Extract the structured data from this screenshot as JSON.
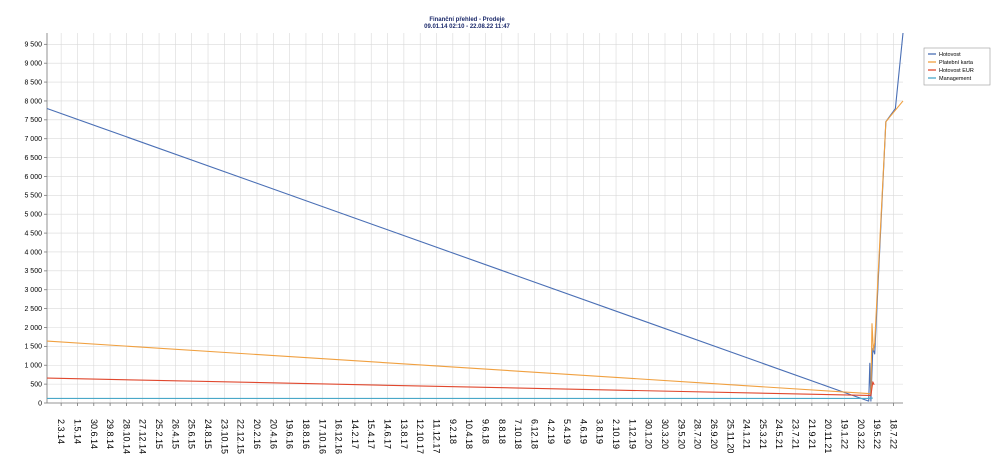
{
  "chart_data": {
    "type": "line",
    "title": "Finanční přehled - Prodeje",
    "subtitle": "09.01.14 02:10 - 22.08.22 11:47",
    "xlabel": "",
    "ylabel": "",
    "ylim": [
      0,
      9800
    ],
    "yticks": [
      0,
      500,
      1000,
      1500,
      2000,
      2500,
      3000,
      3500,
      4000,
      4500,
      5000,
      5500,
      6000,
      6500,
      7000,
      7500,
      8000,
      8500,
      9000,
      9500
    ],
    "ytick_labels": [
      "0",
      "500",
      "1 000",
      "1 500",
      "2 000",
      "2 500",
      "3 000",
      "3 500",
      "4 000",
      "4 500",
      "5 000",
      "5 500",
      "6 000",
      "6 500",
      "7 000",
      "7 500",
      "8 000",
      "8 500",
      "9 000",
      "9 500"
    ],
    "xlim": [
      "2014-01-09",
      "2022-08-22"
    ],
    "xticks": [
      "2014-03-02",
      "2014-05-01",
      "2014-06-30",
      "2014-08-29",
      "2014-10-28",
      "2014-12-27",
      "2015-02-25",
      "2015-04-26",
      "2015-06-25",
      "2015-08-24",
      "2015-10-23",
      "2015-12-22",
      "2016-02-20",
      "2016-04-20",
      "2016-06-19",
      "2016-08-18",
      "2016-10-17",
      "2016-12-16",
      "2017-02-14",
      "2017-04-15",
      "2017-06-14",
      "2017-08-13",
      "2017-10-12",
      "2017-12-11",
      "2018-02-09",
      "2018-04-10",
      "2018-06-09",
      "2018-08-08",
      "2018-10-07",
      "2018-12-06",
      "2019-02-04",
      "2019-04-05",
      "2019-06-04",
      "2019-08-03",
      "2019-10-02",
      "2019-12-01",
      "2020-01-30",
      "2020-03-30",
      "2020-05-29",
      "2020-07-28",
      "2020-09-26",
      "2020-11-25",
      "2021-01-24",
      "2021-03-25",
      "2021-05-24",
      "2021-07-23",
      "2021-09-21",
      "2021-11-20",
      "2022-01-19",
      "2022-03-20",
      "2022-05-19",
      "2022-07-18"
    ],
    "xtick_labels": [
      "2.3.14",
      "1.5.14",
      "30.6.14",
      "29.8.14",
      "28.10.14",
      "27.12.14",
      "25.2.15",
      "26.4.15",
      "25.6.15",
      "24.8.15",
      "23.10.15",
      "22.12.15",
      "20.2.16",
      "20.4.16",
      "19.6.16",
      "18.8.16",
      "17.10.16",
      "16.12.16",
      "14.2.17",
      "15.4.17",
      "14.6.17",
      "13.8.17",
      "12.10.17",
      "11.12.17",
      "9.2.18",
      "10.4.18",
      "9.6.18",
      "8.8.18",
      "7.10.18",
      "6.12.18",
      "4.2.19",
      "5.4.19",
      "4.6.19",
      "3.8.19",
      "2.10.19",
      "1.12.19",
      "30.1.20",
      "30.3.20",
      "29.5.20",
      "28.7.20",
      "26.9.20",
      "25.11.20",
      "24.1.21",
      "25.3.21",
      "24.5.21",
      "23.7.21",
      "21.9.21",
      "20.11.21",
      "19.1.22",
      "20.3.22",
      "19.5.22",
      "18.7.22"
    ],
    "grid": true,
    "legend_position": "top-right",
    "series": [
      {
        "name": "Hotovost",
        "color": "#4a6fb5",
        "points": [
          {
            "x": "2014-01-09",
            "y": 7800
          },
          {
            "x": "2022-04-18",
            "y": 50
          },
          {
            "x": "2022-04-22",
            "y": 1050
          },
          {
            "x": "2022-04-26",
            "y": 50
          },
          {
            "x": "2022-05-03",
            "y": 1450
          },
          {
            "x": "2022-05-10",
            "y": 1300
          },
          {
            "x": "2022-06-20",
            "y": 7450
          },
          {
            "x": "2022-07-25",
            "y": 7800
          },
          {
            "x": "2022-08-22",
            "y": 9800
          }
        ]
      },
      {
        "name": "Platební karta",
        "color": "#f0a040",
        "points": [
          {
            "x": "2014-01-09",
            "y": 1640
          },
          {
            "x": "2022-04-18",
            "y": 250
          },
          {
            "x": "2022-04-26",
            "y": 250
          },
          {
            "x": "2022-04-30",
            "y": 2100
          },
          {
            "x": "2022-05-05",
            "y": 1400
          },
          {
            "x": "2022-05-10",
            "y": 1600
          },
          {
            "x": "2022-06-20",
            "y": 7450
          },
          {
            "x": "2022-08-22",
            "y": 8000
          }
        ]
      },
      {
        "name": "Hotovost EUR",
        "color": "#e0482e",
        "points": [
          {
            "x": "2014-01-09",
            "y": 660
          },
          {
            "x": "2022-04-18",
            "y": 200
          },
          {
            "x": "2022-04-26",
            "y": 200
          },
          {
            "x": "2022-05-03",
            "y": 560
          },
          {
            "x": "2022-05-08",
            "y": 480
          }
        ]
      },
      {
        "name": "Management",
        "color": "#4aa8c8",
        "points": [
          {
            "x": "2014-01-09",
            "y": 120
          },
          {
            "x": "2022-04-18",
            "y": 120
          },
          {
            "x": "2022-05-03",
            "y": 130
          }
        ]
      }
    ]
  }
}
